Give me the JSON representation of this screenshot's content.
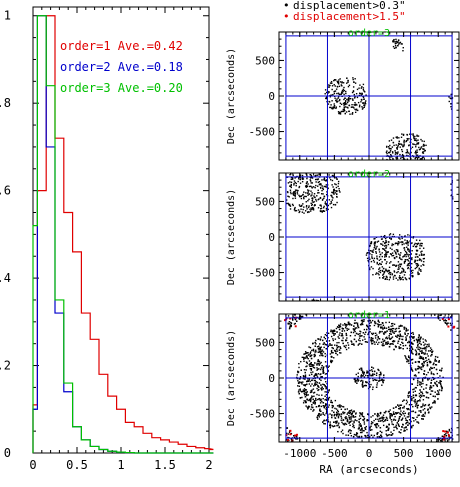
{
  "chart_data": [
    {
      "type": "histogram",
      "x_ticks": [
        "0",
        "0.5",
        "1",
        "1.5",
        "2"
      ],
      "y_ticks": [
        "0",
        "0.2",
        "0.4",
        "0.6",
        "0.8",
        "1"
      ],
      "xlim": [
        0,
        2
      ],
      "ylim": [
        0,
        1.02
      ],
      "bin_width": 0.1,
      "bin_start": -0.05,
      "series": [
        {
          "name": "order=1 Ave.=0.42",
          "color": "#e00000",
          "values": [
            0.11,
            0.6,
            1.0,
            0.72,
            0.55,
            0.46,
            0.32,
            0.26,
            0.18,
            0.13,
            0.1,
            0.07,
            0.06,
            0.045,
            0.035,
            0.03,
            0.025,
            0.02,
            0.015,
            0.012,
            0.01,
            0.008
          ]
        },
        {
          "name": "order=2 Ave.=0.18",
          "color": "#0000cc",
          "values": [
            0.1,
            1.0,
            0.7,
            0.32,
            0.14,
            0.06,
            0.03,
            0.015,
            0.008,
            0.004,
            0.002,
            0.001,
            0,
            0,
            0,
            0,
            0,
            0,
            0,
            0,
            0,
            0
          ]
        },
        {
          "name": "order=3 Ave.=0.20",
          "color": "#00c000",
          "values": [
            0.52,
            1.0,
            0.84,
            0.35,
            0.16,
            0.06,
            0.03,
            0.015,
            0.008,
            0.004,
            0.002,
            0.001,
            0,
            0,
            0,
            0,
            0,
            0,
            0,
            0,
            0,
            0
          ]
        }
      ]
    },
    {
      "type": "scatter",
      "ylabel": "Dec (arcseconds)",
      "panels": [
        {
          "title": "order=3",
          "mode": 3
        },
        {
          "title": "order=2",
          "mode": 2
        },
        {
          "title": "order=1",
          "mode": 1
        }
      ],
      "legend": [
        {
          "marker": "•",
          "label": "displacement>0.3\"",
          "color": "#000000"
        },
        {
          "marker": "•",
          "label": "displacement>1.5\"",
          "color": "#e00000"
        }
      ],
      "x_ticks": [
        "-1000",
        "-500",
        "0",
        "500",
        "1000"
      ],
      "y_ticks": [
        "500",
        "0",
        "-500"
      ],
      "xlabel": "RA (arcseconds)",
      "xlim": [
        -1300,
        1300
      ],
      "ylim": [
        -900,
        900
      ],
      "field_half_size": 1200,
      "chip_grid_x": [
        -1200,
        -600,
        0,
        600,
        1200
      ],
      "chip_grid_y": [
        -900,
        0,
        900
      ],
      "point_color": "#000000",
      "outlier_color": "#e00000",
      "grid_color": "#0000cc",
      "title_color": "#00c000"
    }
  ]
}
